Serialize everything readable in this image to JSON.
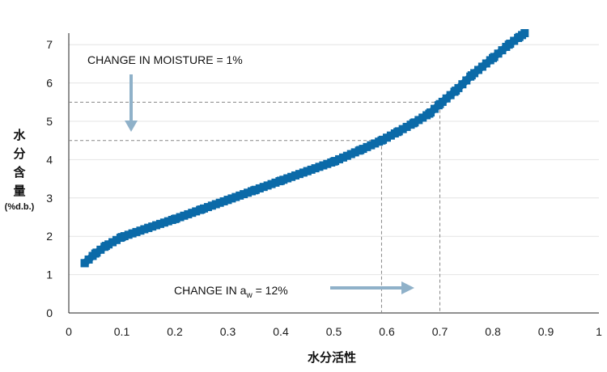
{
  "chart_data": {
    "type": "line",
    "xlabel": "水分活性",
    "ylabel_chars": [
      "水",
      "分",
      "含",
      "量"
    ],
    "ylabel_unit": "(%d.b.)",
    "xlim": [
      0,
      1
    ],
    "ylim": [
      0,
      7.3
    ],
    "xticks": [
      "0",
      "0.1",
      "0.2",
      "0.3",
      "0.4",
      "0.5",
      "0.6",
      "0.7",
      "0.8",
      "0.9",
      "1"
    ],
    "yticks": [
      "0",
      "1",
      "2",
      "3",
      "4",
      "5",
      "6",
      "7"
    ],
    "grid": "horizontal",
    "series": [
      {
        "color": "#0b6aa8",
        "marker": "square",
        "x": [
          0.03,
          0.05,
          0.07,
          0.1,
          0.15,
          0.2,
          0.25,
          0.3,
          0.35,
          0.4,
          0.45,
          0.5,
          0.55,
          0.59,
          0.62,
          0.65,
          0.68,
          0.7,
          0.73,
          0.76,
          0.8,
          0.83,
          0.85,
          0.86
        ],
        "y": [
          1.3,
          1.55,
          1.75,
          1.98,
          2.22,
          2.45,
          2.7,
          2.95,
          3.2,
          3.45,
          3.7,
          3.95,
          4.25,
          4.5,
          4.72,
          4.95,
          5.2,
          5.45,
          5.8,
          6.2,
          6.65,
          7.0,
          7.2,
          7.3
        ]
      }
    ],
    "annotations": {
      "moisture": {
        "text": "CHANGE IN MOISTURE = 1%",
        "y_lines": [
          4.5,
          5.5
        ]
      },
      "aw": {
        "text_pre": "CHANGE IN a",
        "text_sub": "w",
        "text_post": " = 12%",
        "x_lines": [
          0.59,
          0.7
        ]
      }
    }
  }
}
